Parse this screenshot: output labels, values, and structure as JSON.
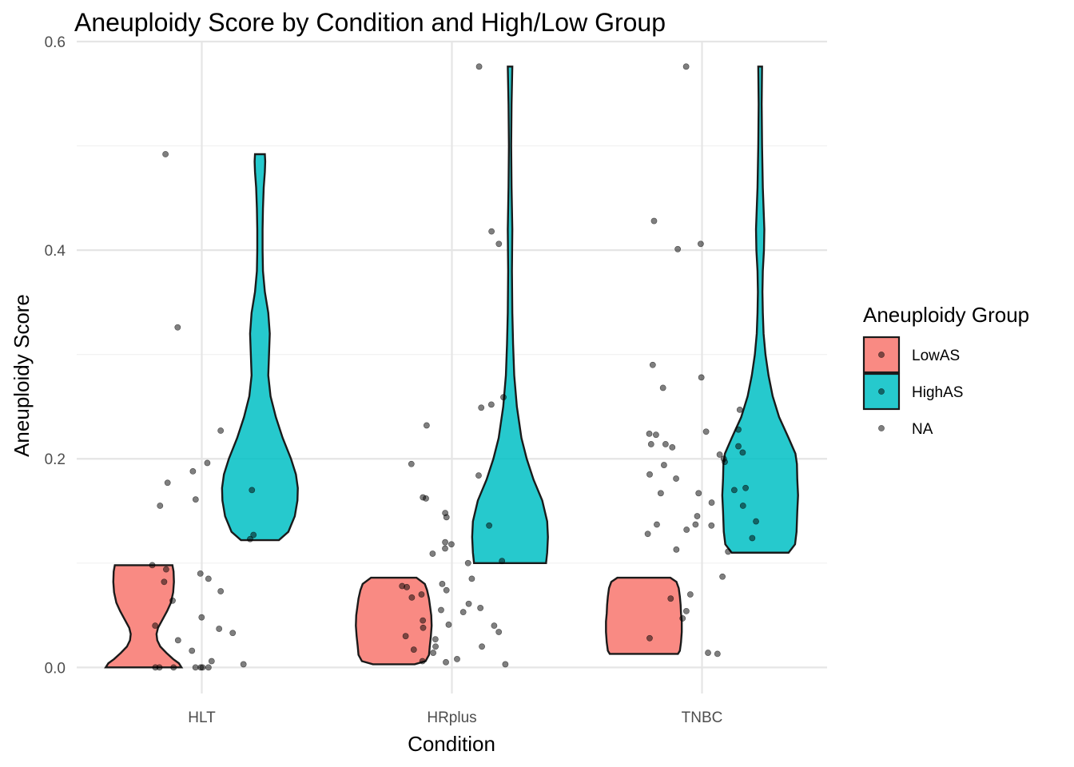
{
  "chart_data": {
    "type": "violin",
    "title": "Aneuploidy Score by Condition and High/Low Group",
    "xlabel": "Condition",
    "ylabel": "Aneuploidy Score",
    "categories": [
      "HLT",
      "HRplus",
      "TNBC"
    ],
    "ylim": [
      -0.025,
      0.6
    ],
    "yticks": [
      0.0,
      0.2,
      0.4,
      0.6
    ],
    "ytick_labels": [
      "0.0",
      "0.2",
      "0.4",
      "0.6"
    ],
    "grid": true,
    "legend": {
      "title": "Aneuploidy Group",
      "position": "right",
      "entries": [
        {
          "label": "LowAS",
          "color": "#f8766d"
        },
        {
          "label": "HighAS",
          "color": "#00bfc4"
        },
        {
          "label": "NA",
          "color": null
        }
      ]
    },
    "series": [
      {
        "name": "LowAS",
        "color": "#f8766d",
        "violins": [
          {
            "category": "HLT",
            "ymin": 0.0,
            "ymax": 0.098,
            "profile": [
              [
                0.0,
                1.0
              ],
              [
                0.004,
                0.93
              ],
              [
                0.008,
                0.78
              ],
              [
                0.014,
                0.6
              ],
              [
                0.02,
                0.44
              ],
              [
                0.026,
                0.36
              ],
              [
                0.032,
                0.34
              ],
              [
                0.038,
                0.38
              ],
              [
                0.046,
                0.5
              ],
              [
                0.054,
                0.62
              ],
              [
                0.062,
                0.72
              ],
              [
                0.072,
                0.78
              ],
              [
                0.082,
                0.8
              ],
              [
                0.092,
                0.79
              ],
              [
                0.098,
                0.76
              ]
            ]
          },
          {
            "category": "HRplus",
            "ymin": 0.003,
            "ymax": 0.086,
            "profile": [
              [
                0.003,
                0.55
              ],
              [
                0.006,
                0.84
              ],
              [
                0.012,
                0.93
              ],
              [
                0.02,
                0.95
              ],
              [
                0.03,
                0.98
              ],
              [
                0.04,
                1.0
              ],
              [
                0.05,
                0.99
              ],
              [
                0.058,
                0.96
              ],
              [
                0.066,
                0.93
              ],
              [
                0.074,
                0.88
              ],
              [
                0.08,
                0.82
              ],
              [
                0.086,
                0.6
              ]
            ]
          },
          {
            "category": "TNBC",
            "ymin": 0.013,
            "ymax": 0.086,
            "profile": [
              [
                0.013,
                0.9
              ],
              [
                0.016,
                0.95
              ],
              [
                0.024,
                0.98
              ],
              [
                0.034,
                1.0
              ],
              [
                0.044,
                1.0
              ],
              [
                0.052,
                0.98
              ],
              [
                0.06,
                0.97
              ],
              [
                0.068,
                0.95
              ],
              [
                0.076,
                0.92
              ],
              [
                0.082,
                0.86
              ],
              [
                0.086,
                0.7
              ]
            ]
          }
        ]
      },
      {
        "name": "HighAS",
        "color": "#00bfc4",
        "violins": [
          {
            "category": "HLT",
            "ymin": 0.122,
            "ymax": 0.492,
            "profile": [
              [
                0.122,
                0.5
              ],
              [
                0.13,
                0.75
              ],
              [
                0.145,
                0.92
              ],
              [
                0.16,
                0.99
              ],
              [
                0.172,
                1.0
              ],
              [
                0.185,
                0.95
              ],
              [
                0.2,
                0.82
              ],
              [
                0.22,
                0.6
              ],
              [
                0.24,
                0.42
              ],
              [
                0.26,
                0.28
              ],
              [
                0.28,
                0.22
              ],
              [
                0.3,
                0.24
              ],
              [
                0.32,
                0.26
              ],
              [
                0.34,
                0.22
              ],
              [
                0.36,
                0.13
              ],
              [
                0.38,
                0.08
              ],
              [
                0.4,
                0.07
              ],
              [
                0.42,
                0.07
              ],
              [
                0.44,
                0.08
              ],
              [
                0.46,
                0.1
              ],
              [
                0.475,
                0.13
              ],
              [
                0.485,
                0.14
              ],
              [
                0.492,
                0.13
              ]
            ]
          },
          {
            "category": "HRplus",
            "ymin": 0.1,
            "ymax": 0.576,
            "profile": [
              [
                0.1,
                0.95
              ],
              [
                0.11,
                0.98
              ],
              [
                0.125,
                1.0
              ],
              [
                0.14,
                0.98
              ],
              [
                0.16,
                0.85
              ],
              [
                0.18,
                0.62
              ],
              [
                0.2,
                0.44
              ],
              [
                0.22,
                0.3
              ],
              [
                0.25,
                0.18
              ],
              [
                0.28,
                0.11
              ],
              [
                0.31,
                0.08
              ],
              [
                0.34,
                0.06
              ],
              [
                0.38,
                0.05
              ],
              [
                0.42,
                0.06
              ],
              [
                0.46,
                0.04
              ],
              [
                0.5,
                0.03
              ],
              [
                0.54,
                0.04
              ],
              [
                0.576,
                0.06
              ]
            ]
          },
          {
            "category": "TNBC",
            "ymin": 0.11,
            "ymax": 0.576,
            "profile": [
              [
                0.11,
                0.75
              ],
              [
                0.118,
                0.92
              ],
              [
                0.13,
                0.96
              ],
              [
                0.15,
                0.98
              ],
              [
                0.165,
                1.0
              ],
              [
                0.18,
                0.98
              ],
              [
                0.195,
                0.97
              ],
              [
                0.205,
                0.93
              ],
              [
                0.22,
                0.75
              ],
              [
                0.24,
                0.5
              ],
              [
                0.26,
                0.33
              ],
              [
                0.28,
                0.22
              ],
              [
                0.3,
                0.14
              ],
              [
                0.32,
                0.09
              ],
              [
                0.34,
                0.07
              ],
              [
                0.36,
                0.06
              ],
              [
                0.38,
                0.07
              ],
              [
                0.4,
                0.1
              ],
              [
                0.42,
                0.11
              ],
              [
                0.44,
                0.09
              ],
              [
                0.46,
                0.07
              ],
              [
                0.5,
                0.05
              ],
              [
                0.54,
                0.04
              ],
              [
                0.576,
                0.05
              ]
            ]
          }
        ]
      }
    ],
    "points": {
      "name": "NA",
      "HLT": [
        0.0,
        0.0,
        0.0,
        0.0,
        0.0,
        0.0,
        0.0,
        0.003,
        0.006,
        0.016,
        0.026,
        0.033,
        0.037,
        0.04,
        0.048,
        0.064,
        0.073,
        0.082,
        0.085,
        0.09,
        0.094,
        0.098,
        0.123,
        0.127,
        0.155,
        0.161,
        0.17,
        0.177,
        0.188,
        0.196,
        0.227,
        0.326,
        0.492
      ],
      "HRplus": [
        0.003,
        0.005,
        0.006,
        0.008,
        0.014,
        0.017,
        0.02,
        0.02,
        0.027,
        0.03,
        0.034,
        0.038,
        0.04,
        0.041,
        0.045,
        0.053,
        0.055,
        0.057,
        0.061,
        0.067,
        0.07,
        0.074,
        0.077,
        0.078,
        0.08,
        0.085,
        0.1,
        0.102,
        0.109,
        0.114,
        0.118,
        0.12,
        0.136,
        0.144,
        0.148,
        0.162,
        0.163,
        0.184,
        0.195,
        0.232,
        0.249,
        0.252,
        0.259,
        0.406,
        0.418,
        0.576
      ],
      "TNBC": [
        0.013,
        0.014,
        0.028,
        0.047,
        0.054,
        0.066,
        0.07,
        0.087,
        0.111,
        0.113,
        0.124,
        0.128,
        0.132,
        0.136,
        0.137,
        0.137,
        0.14,
        0.145,
        0.155,
        0.158,
        0.167,
        0.167,
        0.17,
        0.172,
        0.181,
        0.185,
        0.194,
        0.197,
        0.2,
        0.204,
        0.206,
        0.211,
        0.212,
        0.214,
        0.214,
        0.223,
        0.224,
        0.226,
        0.228,
        0.247,
        0.268,
        0.278,
        0.29,
        0.401,
        0.406,
        0.428,
        0.576
      ]
    }
  }
}
